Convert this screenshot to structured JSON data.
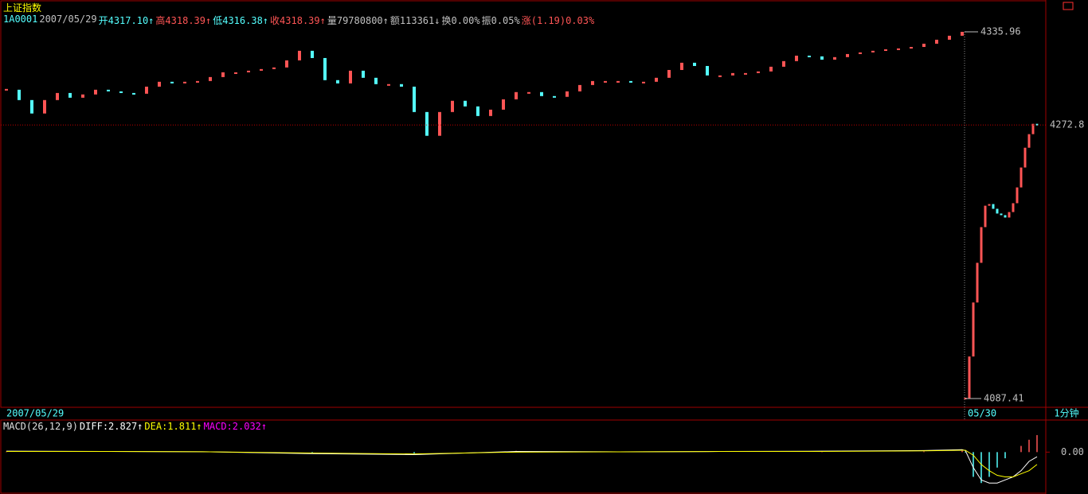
{
  "chart_data": {
    "type": "candlestick",
    "title": "上证指数",
    "header": [
      {
        "text": "1A0001",
        "color": "#54ffff"
      },
      {
        "text": "2007/05/29",
        "color": "#c0c0c0"
      },
      {
        "text": "开4317.10↑",
        "color": "#54ffff"
      },
      {
        "text": "高4318.39↑",
        "color": "#ff5555"
      },
      {
        "text": "低4316.38↑",
        "color": "#54ffff"
      },
      {
        "text": "收4318.39↑",
        "color": "#ff5555"
      },
      {
        "text": "量79780800↑",
        "color": "#c0c0c0"
      },
      {
        "text": "额113361↓",
        "color": "#c0c0c0"
      },
      {
        "text": "换0.00%",
        "color": "#c0c0c0"
      },
      {
        "text": "振0.05%",
        "color": "#c0c0c0"
      },
      {
        "text": "涨(1.19)0.03%",
        "color": "#ff5555"
      }
    ],
    "up_color": "#ff5555",
    "down_color": "#54ffff",
    "ylim": [
      4087.41,
      4335.96
    ],
    "interval": "1分钟",
    "sessions": [
      {
        "date": "2007/05/29",
        "values": [
          4296.7,
          4289.7,
          4280.6,
          4289.7,
          4294.5,
          4291.3,
          4293.5,
          4296.7,
          4295.6,
          4294.5,
          4294.0,
          4298.8,
          4302.1,
          4301.5,
          4302.1,
          4302.6,
          4305.3,
          4308.5,
          4308.5,
          4309.6,
          4310.7,
          4311.8,
          4316.6,
          4323.1,
          4318.2,
          4303.2,
          4301.0,
          4309.6,
          4304.8,
          4300.5,
          4300.5,
          4298.8,
          4281.6,
          4265.5,
          4281.6,
          4289.2,
          4285.4,
          4278.9,
          4283.2,
          4290.2,
          4295.1,
          4295.1,
          4292.4,
          4291.9,
          4295.6,
          4299.9,
          4302.6,
          4302.6,
          4302.6,
          4302.1,
          4302.1,
          4304.8,
          4310.1,
          4315.0,
          4312.8,
          4306.4,
          4306.4,
          4308.0,
          4308.0,
          4309.1,
          4312.3,
          4316.1,
          4319.8,
          4319.3,
          4317.1,
          4318.8,
          4320.9,
          4322.0,
          4323.1,
          4324.1,
          4324.7,
          4325.7,
          4327.9,
          4330.6,
          4333.3,
          4335.96
        ]
      },
      {
        "date": "05/30",
        "values": [
          4087.41,
          4115.9,
          4152.5,
          4179.4,
          4203.6,
          4218.1,
          4219.2,
          4216.0,
          4212.8,
          4211.7,
          4210.1,
          4213.8,
          4219.8,
          4230.5,
          4244.0,
          4257.4,
          4266.6,
          4273.6,
          4272.8
        ]
      }
    ],
    "macd": {
      "title": "MACD(26,12,9)",
      "labels": [
        {
          "text": "DIFF:2.827↑",
          "color": "#ffffff"
        },
        {
          "text": "DEA:1.811↑",
          "color": "#ffff00"
        },
        {
          "text": "MACD:2.032↑",
          "color": "#ff00ff"
        }
      ],
      "x": [
        0,
        8,
        16,
        24,
        32,
        40,
        48,
        56,
        64,
        72,
        75,
        76,
        78,
        80,
        82,
        84,
        86,
        88,
        90,
        92,
        94
      ],
      "diff": [
        0.3,
        0.2,
        0.1,
        -0.5,
        -0.8,
        0.2,
        0.1,
        0.2,
        0.3,
        0.5,
        0.8,
        0.5,
        -5,
        -9,
        -10,
        -10,
        -9,
        -8,
        -6,
        -3,
        -1.5
      ],
      "dea": [
        0.2,
        0.2,
        0.1,
        -0.3,
        -0.6,
        0,
        0.1,
        0.2,
        0.2,
        0.4,
        0.6,
        0.6,
        -1,
        -4,
        -6,
        -7.5,
        -8,
        -8,
        -7,
        -6,
        -4
      ],
      "hist": [
        0.2,
        0,
        0,
        -0.4,
        -0.4,
        0.4,
        0,
        0,
        0.2,
        0.2,
        0.4,
        -0.2,
        -8,
        -10,
        -8,
        -5,
        -2,
        0,
        2,
        4,
        5.5
      ],
      "diff_color": "#ffffff",
      "dea_color": "#ffff00",
      "ylim": [
        -12,
        6
      ],
      "yticks": [
        {
          "value": 0,
          "label": "0.00"
        }
      ]
    }
  }
}
